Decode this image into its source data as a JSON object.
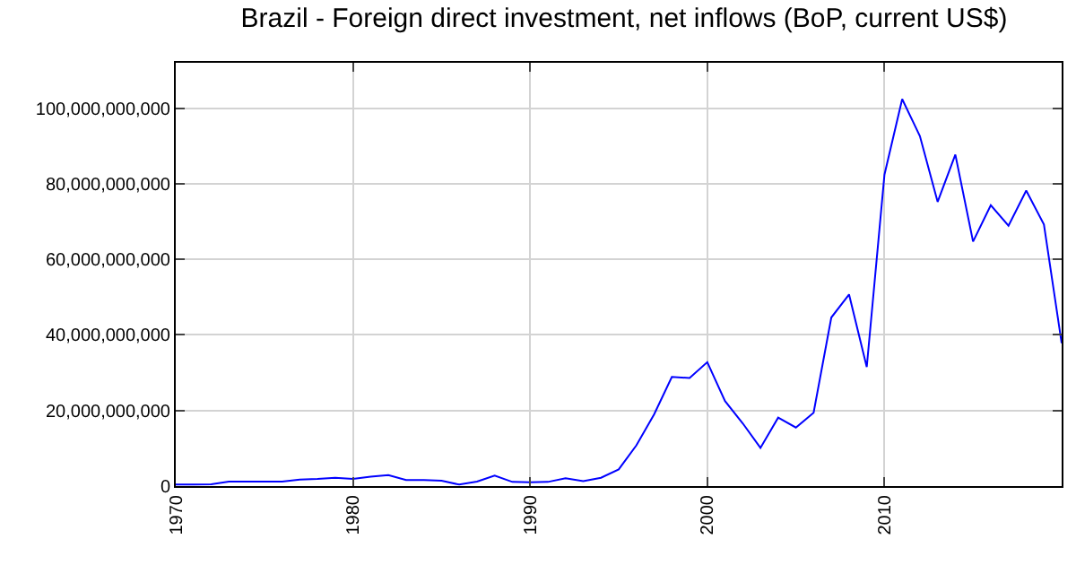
{
  "chart_data": {
    "type": "line",
    "title": "Brazil - Foreign direct investment, net inflows (BoP, current US$)",
    "x": [
      1970,
      1971,
      1972,
      1973,
      1974,
      1975,
      1976,
      1977,
      1978,
      1979,
      1980,
      1981,
      1982,
      1983,
      1984,
      1985,
      1986,
      1987,
      1988,
      1989,
      1990,
      1991,
      1992,
      1993,
      1994,
      1995,
      1996,
      1997,
      1998,
      1999,
      2000,
      2001,
      2002,
      2003,
      2004,
      2005,
      2006,
      2007,
      2008,
      2009,
      2010,
      2011,
      2012,
      2013,
      2014,
      2015,
      2016,
      2017,
      2018,
      2019,
      2020
    ],
    "series": [
      {
        "color": "#0000ff",
        "values": [
          400000000,
          400000000,
          500000000,
          1200000000,
          1200000000,
          1200000000,
          1200000000,
          1700000000,
          1900000000,
          2200000000,
          1900000000,
          2500000000,
          2900000000,
          1600000000,
          1600000000,
          1400000000,
          400000000,
          1200000000,
          2800000000,
          1100000000,
          1000000000,
          1100000000,
          2100000000,
          1300000000,
          2200000000,
          4400000000,
          10800000000,
          19000000000,
          28900000000,
          28600000000,
          32800000000,
          22500000000,
          16600000000,
          10100000000,
          18100000000,
          15500000000,
          19400000000,
          44600000000,
          50700000000,
          31500000000,
          82400000000,
          102400000000,
          92600000000,
          75200000000,
          87700000000,
          64700000000,
          74300000000,
          68900000000,
          78200000000,
          69200000000,
          37800000000
        ]
      }
    ],
    "xlim": [
      1970,
      2020
    ],
    "xticks": [
      1970,
      1980,
      1990,
      2000,
      2010
    ],
    "ylim": [
      0,
      112000000000
    ],
    "yticks": [
      {
        "value": 0,
        "label": "0"
      },
      {
        "value": 20000000000,
        "label": "20,000,000,000"
      },
      {
        "value": 40000000000,
        "label": "40,000,000,000"
      },
      {
        "value": 60000000000,
        "label": "60,000,000,000"
      },
      {
        "value": 80000000000,
        "label": "80,000,000,000"
      },
      {
        "value": 100000000000,
        "label": "100,000,000,000"
      }
    ],
    "grid": true,
    "marker": "none",
    "line_style": "solid"
  }
}
